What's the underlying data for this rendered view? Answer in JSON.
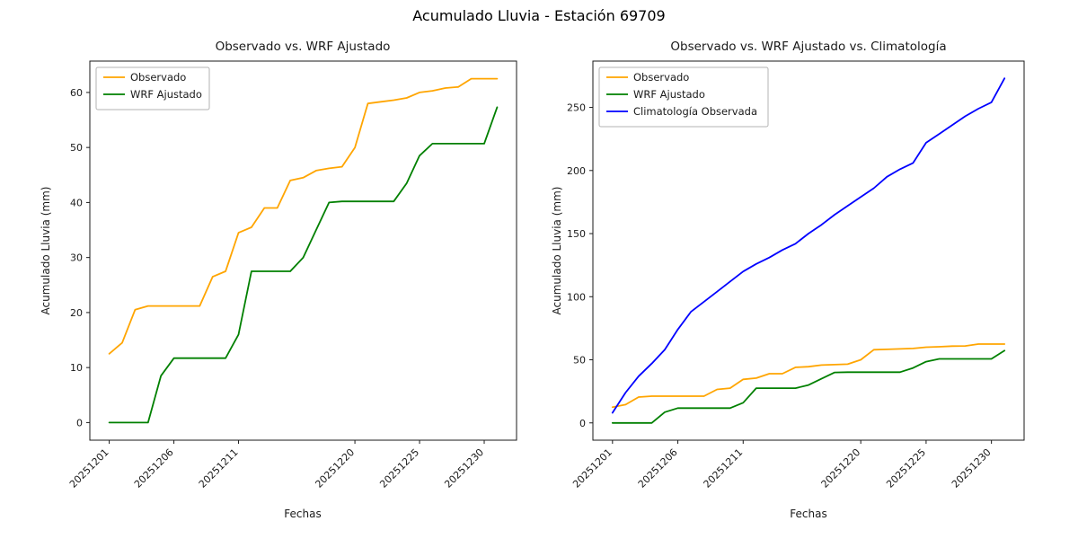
{
  "figure": {
    "suptitle": "Acumulado Lluvia - Estación 69709"
  },
  "chart_data": [
    {
      "type": "line",
      "title": "Observado vs. WRF Ajustado",
      "xlabel": "Fechas",
      "ylabel": "Acumulado Lluvia (mm)",
      "x": [
        "20251201",
        "20251202",
        "20251203",
        "20251204",
        "20251205",
        "20251206",
        "20251207",
        "20251208",
        "20251209",
        "20251210",
        "20251211",
        "20251212",
        "20251213",
        "20251214",
        "20251215",
        "20251216",
        "20251217",
        "20251218",
        "20251219",
        "20251220",
        "20251221",
        "20251222",
        "20251223",
        "20251224",
        "20251225",
        "20251226",
        "20251227",
        "20251228",
        "20251229",
        "20251230",
        "20251231"
      ],
      "xtick_days": [
        1,
        6,
        11,
        20,
        25,
        30
      ],
      "xtick_labels": [
        "20251201",
        "20251206",
        "20251211",
        "20251220",
        "20251225",
        "20251230"
      ],
      "yticks": [
        0,
        10,
        20,
        30,
        40,
        50,
        60
      ],
      "ylim": [
        -3.2,
        65.7
      ],
      "grid": false,
      "legend_position": "upper left",
      "series": [
        {
          "name": "Observado",
          "color": "#ffa500",
          "values": [
            12.5,
            14.5,
            20.5,
            21.2,
            21.2,
            21.2,
            21.2,
            21.2,
            26.5,
            27.5,
            34.5,
            35.5,
            39,
            39,
            44,
            44.5,
            45.8,
            46.2,
            46.5,
            50,
            58,
            58.3,
            58.6,
            59,
            60,
            60.3,
            60.8,
            61,
            62.5,
            62.5,
            62.5
          ]
        },
        {
          "name": "WRF Ajustado",
          "color": "#008000",
          "values": [
            0,
            0,
            0,
            0,
            8.5,
            11.7,
            11.7,
            11.7,
            11.7,
            11.7,
            16,
            27.5,
            27.5,
            27.5,
            27.5,
            30,
            35,
            40,
            40.2,
            40.2,
            40.2,
            40.2,
            40.2,
            43.5,
            48.5,
            50.7,
            50.7,
            50.7,
            50.7,
            50.7,
            57.3
          ]
        }
      ]
    },
    {
      "type": "line",
      "title": "Observado vs. WRF Ajustado vs. Climatología",
      "xlabel": "Fechas",
      "ylabel": "Acumulado Lluvia (mm)",
      "x": [
        "20251201",
        "20251202",
        "20251203",
        "20251204",
        "20251205",
        "20251206",
        "20251207",
        "20251208",
        "20251209",
        "20251210",
        "20251211",
        "20251212",
        "20251213",
        "20251214",
        "20251215",
        "20251216",
        "20251217",
        "20251218",
        "20251219",
        "20251220",
        "20251221",
        "20251222",
        "20251223",
        "20251224",
        "20251225",
        "20251226",
        "20251227",
        "20251228",
        "20251229",
        "20251230",
        "20251231"
      ],
      "xtick_days": [
        1,
        6,
        11,
        20,
        25,
        30
      ],
      "xtick_labels": [
        "20251201",
        "20251206",
        "20251211",
        "20251220",
        "20251225",
        "20251230"
      ],
      "yticks": [
        0,
        50,
        100,
        150,
        200,
        250
      ],
      "ylim": [
        -13.7,
        286.7
      ],
      "grid": false,
      "legend_position": "upper left",
      "series": [
        {
          "name": "Observado",
          "color": "#ffa500",
          "values": [
            12.5,
            14.5,
            20.5,
            21.2,
            21.2,
            21.2,
            21.2,
            21.2,
            26.5,
            27.5,
            34.5,
            35.5,
            39,
            39,
            44,
            44.5,
            45.8,
            46.2,
            46.5,
            50,
            58,
            58.3,
            58.6,
            59,
            60,
            60.3,
            60.8,
            61,
            62.5,
            62.5,
            62.5
          ]
        },
        {
          "name": "WRF Ajustado",
          "color": "#008000",
          "values": [
            0,
            0,
            0,
            0,
            8.5,
            11.7,
            11.7,
            11.7,
            11.7,
            11.7,
            16,
            27.5,
            27.5,
            27.5,
            27.5,
            30,
            35,
            40,
            40.2,
            40.2,
            40.2,
            40.2,
            40.2,
            43.5,
            48.5,
            50.7,
            50.7,
            50.7,
            50.7,
            50.7,
            57.3
          ]
        },
        {
          "name": "Climatología Observada",
          "color": "#0000ff",
          "values": [
            8,
            24,
            37,
            47,
            58,
            74,
            88,
            96,
            104,
            112,
            120,
            126,
            131,
            137,
            142,
            150,
            157,
            165,
            172,
            179,
            186,
            195,
            201,
            206,
            222,
            229,
            236,
            243,
            249,
            254,
            273
          ]
        }
      ]
    }
  ]
}
